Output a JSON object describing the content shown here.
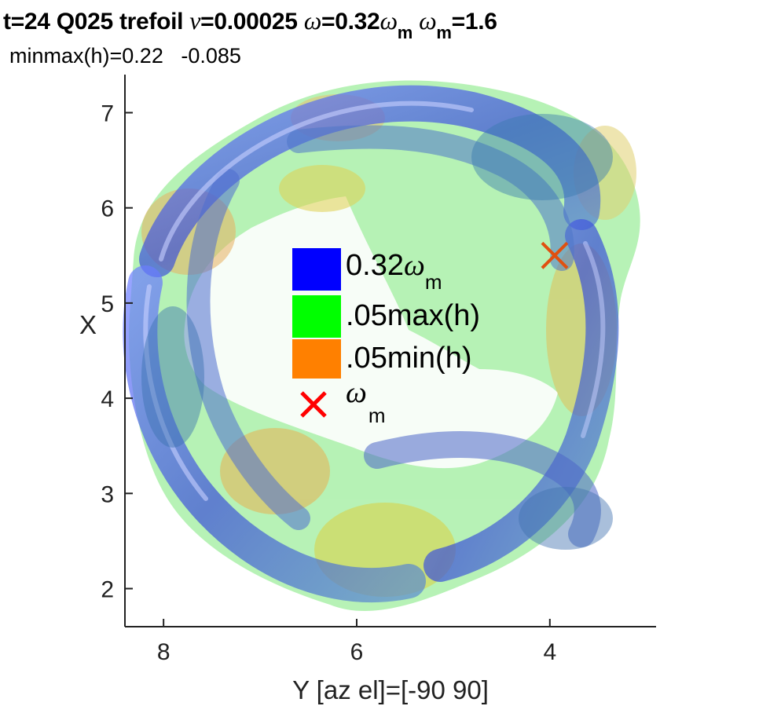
{
  "title": {
    "prefix": "t=24 Q025 trefoil ",
    "nu_symbol": "ν",
    "nu_value": "=0.00025 ",
    "omega_symbol": "ω",
    "omega_value": "=0.32",
    "omega_m_symbol": "ω",
    "omega_m_sub": "m",
    "omega_m_symbol_2": "ω",
    "omega_m_sub_2": "m",
    "omega_m_value": "=1.6"
  },
  "subtitle": "minmax(h)=0.22   -0.085",
  "axes": {
    "xlabel": "Y  [az el]=[-90 90]",
    "ylabel": "X",
    "x_ticks": [
      "8",
      "6",
      "4"
    ],
    "y_ticks": [
      "7",
      "6",
      "5",
      "4",
      "3",
      "2"
    ],
    "x_range_reversed": [
      8.4,
      2.9
    ],
    "y_range": [
      1.6,
      7.4
    ]
  },
  "legend": {
    "items": [
      {
        "label": "0.32",
        "greek": "ω",
        "sub": "m",
        "color": "#0000ff"
      },
      {
        "label": ".05max(h)",
        "color": "#00ff00"
      },
      {
        "label": ".05min(h)",
        "color": "#ff8000"
      },
      {
        "greek": "ω",
        "sub": "m",
        "marker": "x",
        "color": "#ff0000"
      }
    ]
  },
  "marker": {
    "y": 3.95,
    "x": 5.5,
    "color": "#e05010"
  },
  "colors": {
    "blue_tube": "#3a4fd8",
    "green_surface": "#55e060",
    "orange_surface": "#f0a040",
    "yellow_surface": "#d8e040"
  }
}
